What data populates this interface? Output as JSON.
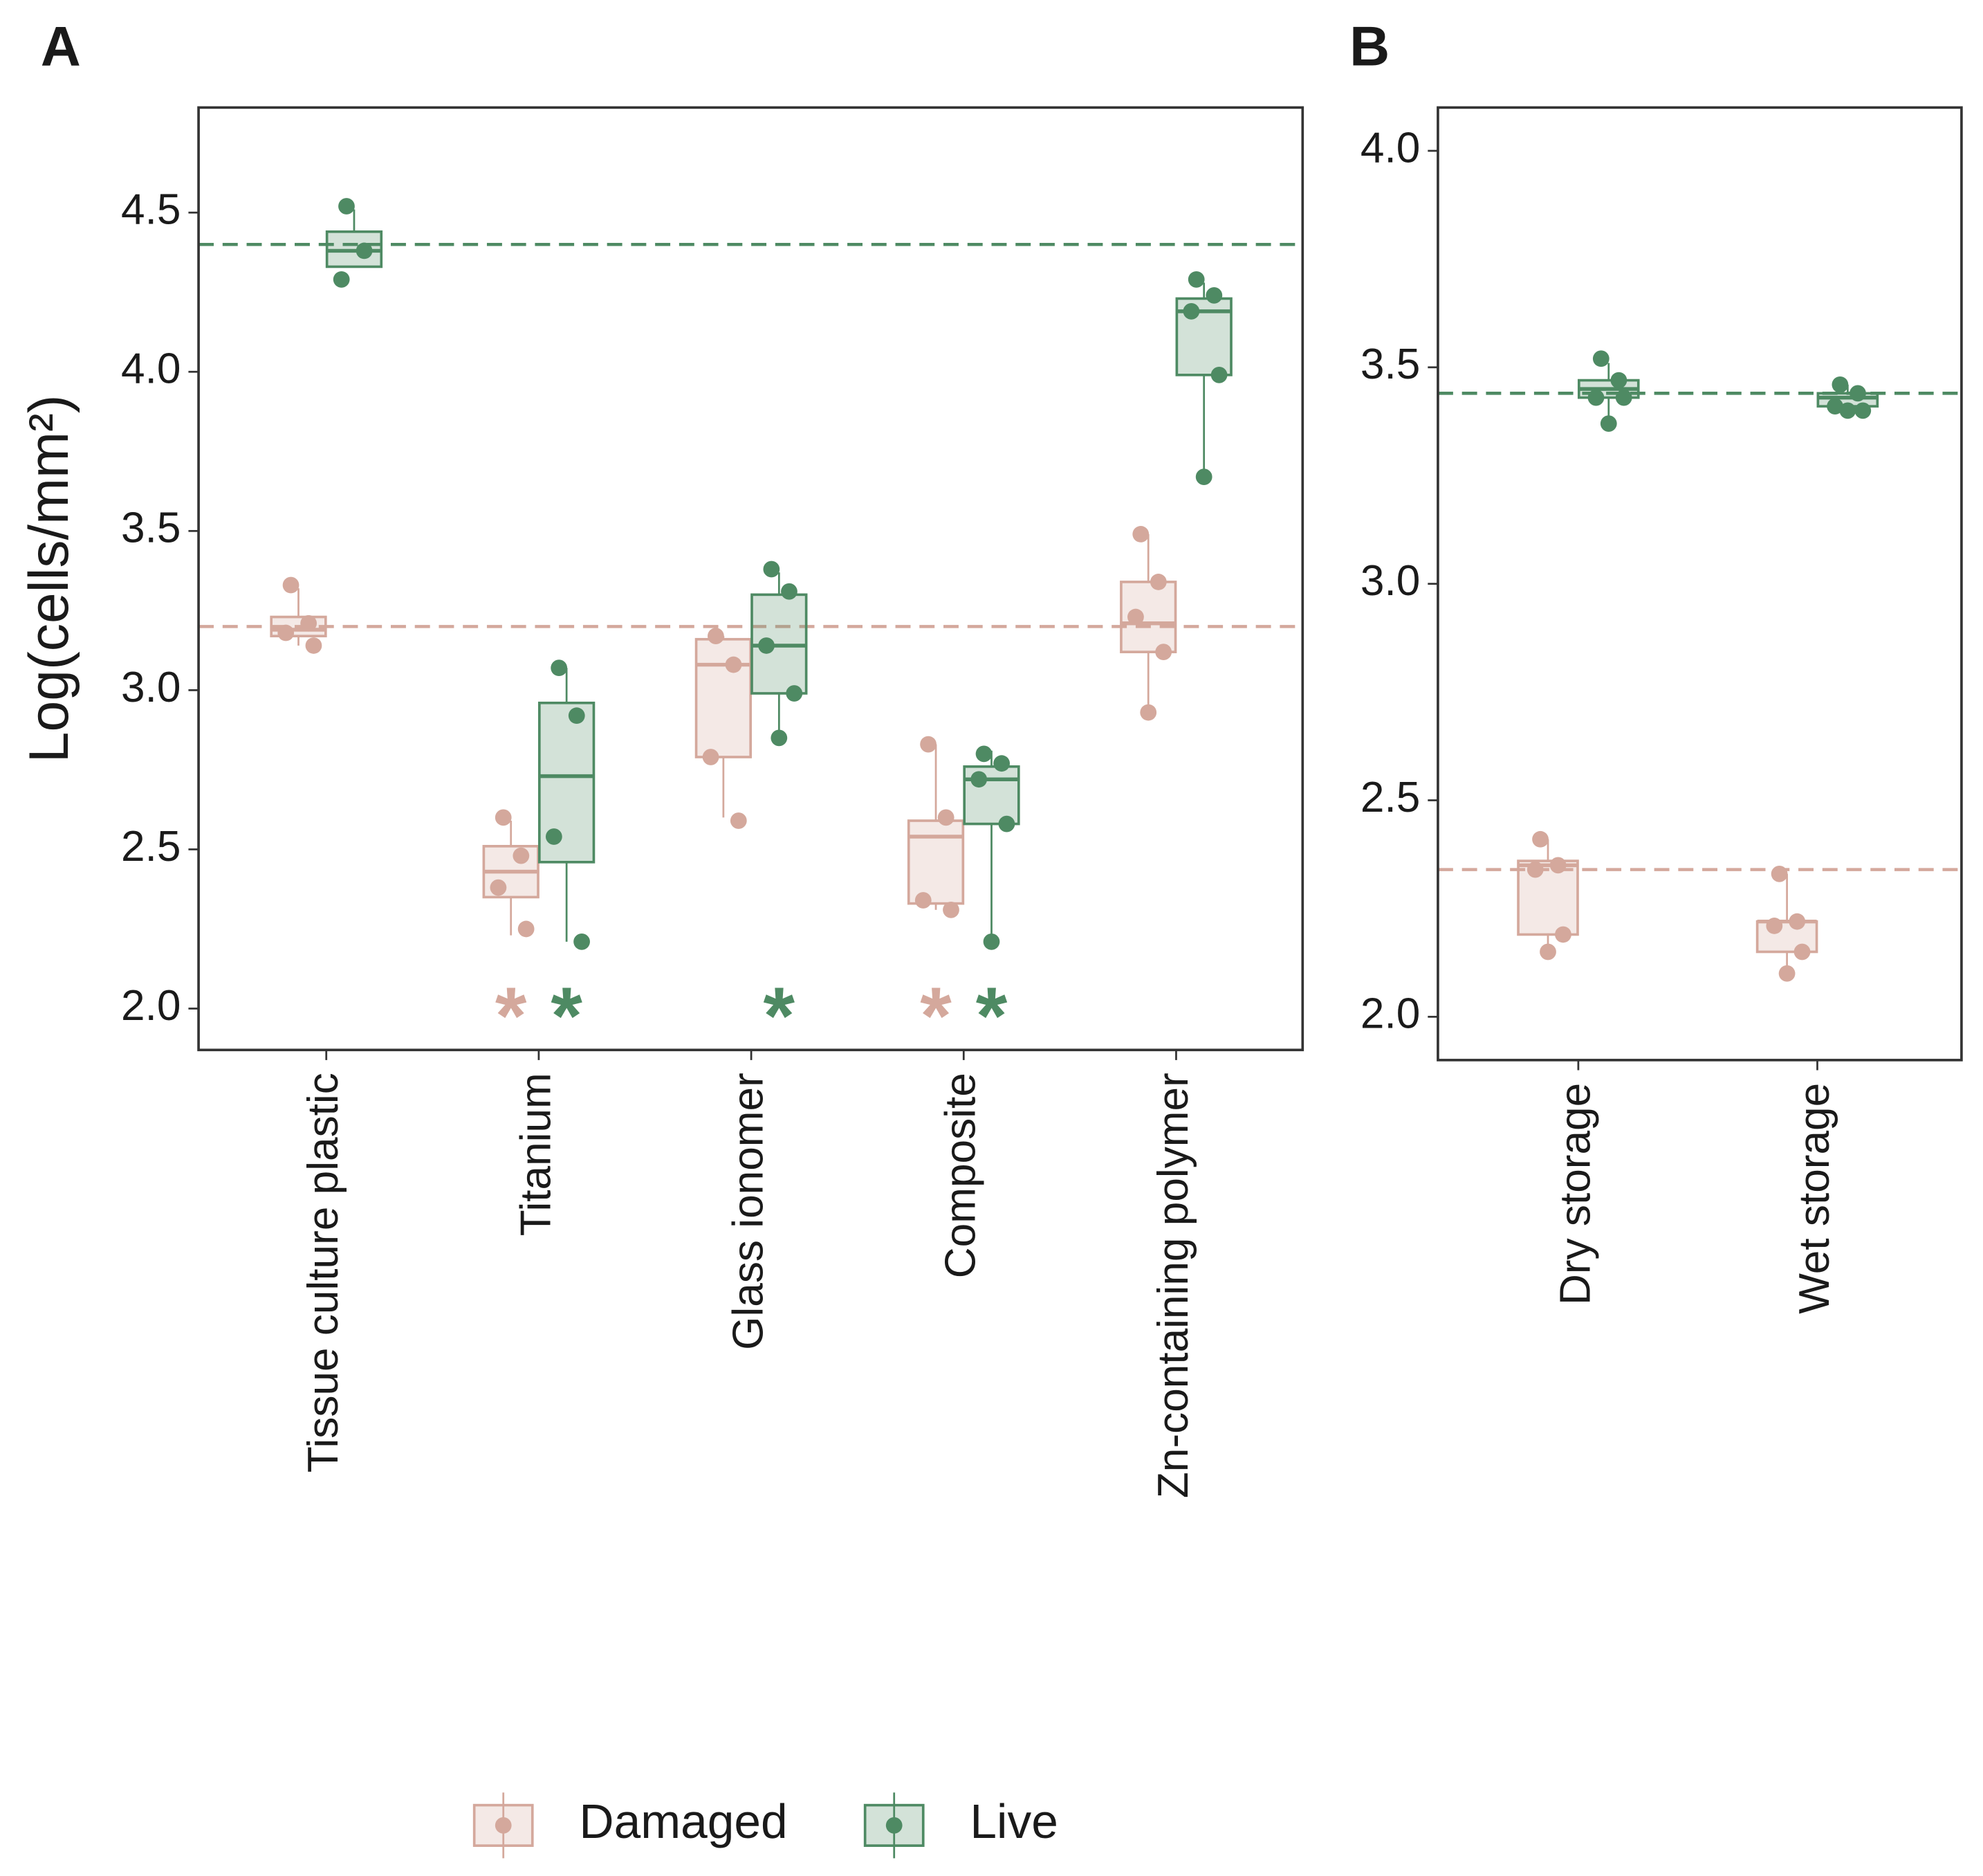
{
  "chart_data": [
    {
      "type": "box",
      "label": "A",
      "ylabel": "Log(cells/mm²)",
      "categories": [
        "Tissue culture plastic",
        "Titanium",
        "Glass ionomer",
        "Composite",
        "Zn-containing polymer"
      ],
      "ylim": [
        1.87,
        4.83
      ],
      "yticks": [
        {
          "value": 2,
          "label": "2.0"
        },
        2.5,
        {
          "value": 3,
          "label": "3.0"
        },
        3.5,
        {
          "value": 4,
          "label": "4.0"
        },
        4.5
      ],
      "series": [
        {
          "name": "Damaged",
          "color": "#d4a89c",
          "reference": 3.2,
          "labels": [
            null,
            "*",
            null,
            "*",
            null
          ],
          "boxes": [
            {
              "low": 3.14,
              "q1": 3.17,
              "median": 3.19,
              "q3": 3.23,
              "high": 3.32,
              "points": [
                3.33,
                3.21,
                3.18,
                3.14
              ]
            },
            {
              "low": 2.23,
              "q1": 2.35,
              "median": 2.43,
              "q3": 2.51,
              "high": 2.59,
              "points": [
                2.6,
                2.48,
                2.38,
                2.25
              ]
            },
            {
              "low": 2.6,
              "q1": 2.79,
              "median": 3.08,
              "q3": 3.16,
              "high": 3.17,
              "points": [
                3.17,
                3.08,
                2.79,
                2.59
              ]
            },
            {
              "low": 2.31,
              "q1": 2.33,
              "median": 2.54,
              "q3": 2.59,
              "high": 2.83,
              "points": [
                2.83,
                2.6,
                2.34,
                2.31
              ]
            },
            {
              "low": 2.93,
              "q1": 3.12,
              "median": 3.21,
              "q3": 3.34,
              "high": 3.49,
              "points": [
                3.49,
                3.34,
                3.23,
                3.12,
                2.93
              ]
            }
          ]
        },
        {
          "name": "Live",
          "color": "#4e8a63",
          "reference": 4.4,
          "labels": [
            null,
            "*",
            "*",
            "*",
            null
          ],
          "boxes": [
            {
              "low": 4.33,
              "q1": 4.33,
              "median": 4.38,
              "q3": 4.44,
              "high": 4.51,
              "points": [
                4.52,
                4.38,
                4.29
              ]
            },
            {
              "low": 2.21,
              "q1": 2.46,
              "median": 2.73,
              "q3": 2.96,
              "high": 3.07,
              "points": [
                3.07,
                2.92,
                2.54,
                2.21
              ]
            },
            {
              "low": 2.85,
              "q1": 2.99,
              "median": 3.14,
              "q3": 3.3,
              "high": 3.37,
              "points": [
                3.38,
                3.31,
                3.14,
                2.99,
                2.85
              ]
            },
            {
              "low": 2.21,
              "q1": 2.58,
              "median": 2.72,
              "q3": 2.76,
              "high": 2.81,
              "points": [
                2.8,
                2.77,
                2.72,
                2.58,
                2.21
              ]
            },
            {
              "low": 3.67,
              "q1": 3.99,
              "median": 4.19,
              "q3": 4.23,
              "high": 4.28,
              "points": [
                4.29,
                4.24,
                4.19,
                3.99,
                3.67
              ]
            }
          ]
        }
      ]
    },
    {
      "type": "box",
      "label": "B",
      "categories": [
        "Dry storage",
        "Wet storage"
      ],
      "ylim": [
        1.9,
        4.1
      ],
      "yticks": [
        {
          "value": 2,
          "label": "2.0"
        },
        2.5,
        {
          "value": 3,
          "label": "3.0"
        },
        3.5,
        {
          "value": 4,
          "label": "4.0"
        }
      ],
      "series": [
        {
          "color": "#d4a89c",
          "reference": 2.34,
          "boxes": [
            {
              "low": 2.16,
              "q1": 2.19,
              "median": 2.35,
              "q3": 2.36,
              "high": 2.41,
              "points": [
                2.41,
                2.35,
                2.34,
                2.19,
                2.15
              ]
            },
            {
              "low": 2.11,
              "q1": 2.15,
              "median": 2.22,
              "q3": 2.22,
              "high": 2.33,
              "points": [
                2.33,
                2.22,
                2.21,
                2.15,
                2.1
              ]
            }
          ]
        },
        {
          "color": "#4e8a63",
          "reference": 3.44,
          "boxes": [
            {
              "low": 3.37,
              "q1": 3.43,
              "median": 3.45,
              "q3": 3.47,
              "high": 3.51,
              "points": [
                3.52,
                3.47,
                3.43,
                3.43,
                3.37
              ]
            },
            {
              "low": 3.4,
              "q1": 3.41,
              "median": 3.43,
              "q3": 3.44,
              "high": 3.46,
              "points": [
                3.46,
                3.44,
                3.41,
                3.4,
                3.4
              ]
            }
          ]
        }
      ]
    }
  ]
}
